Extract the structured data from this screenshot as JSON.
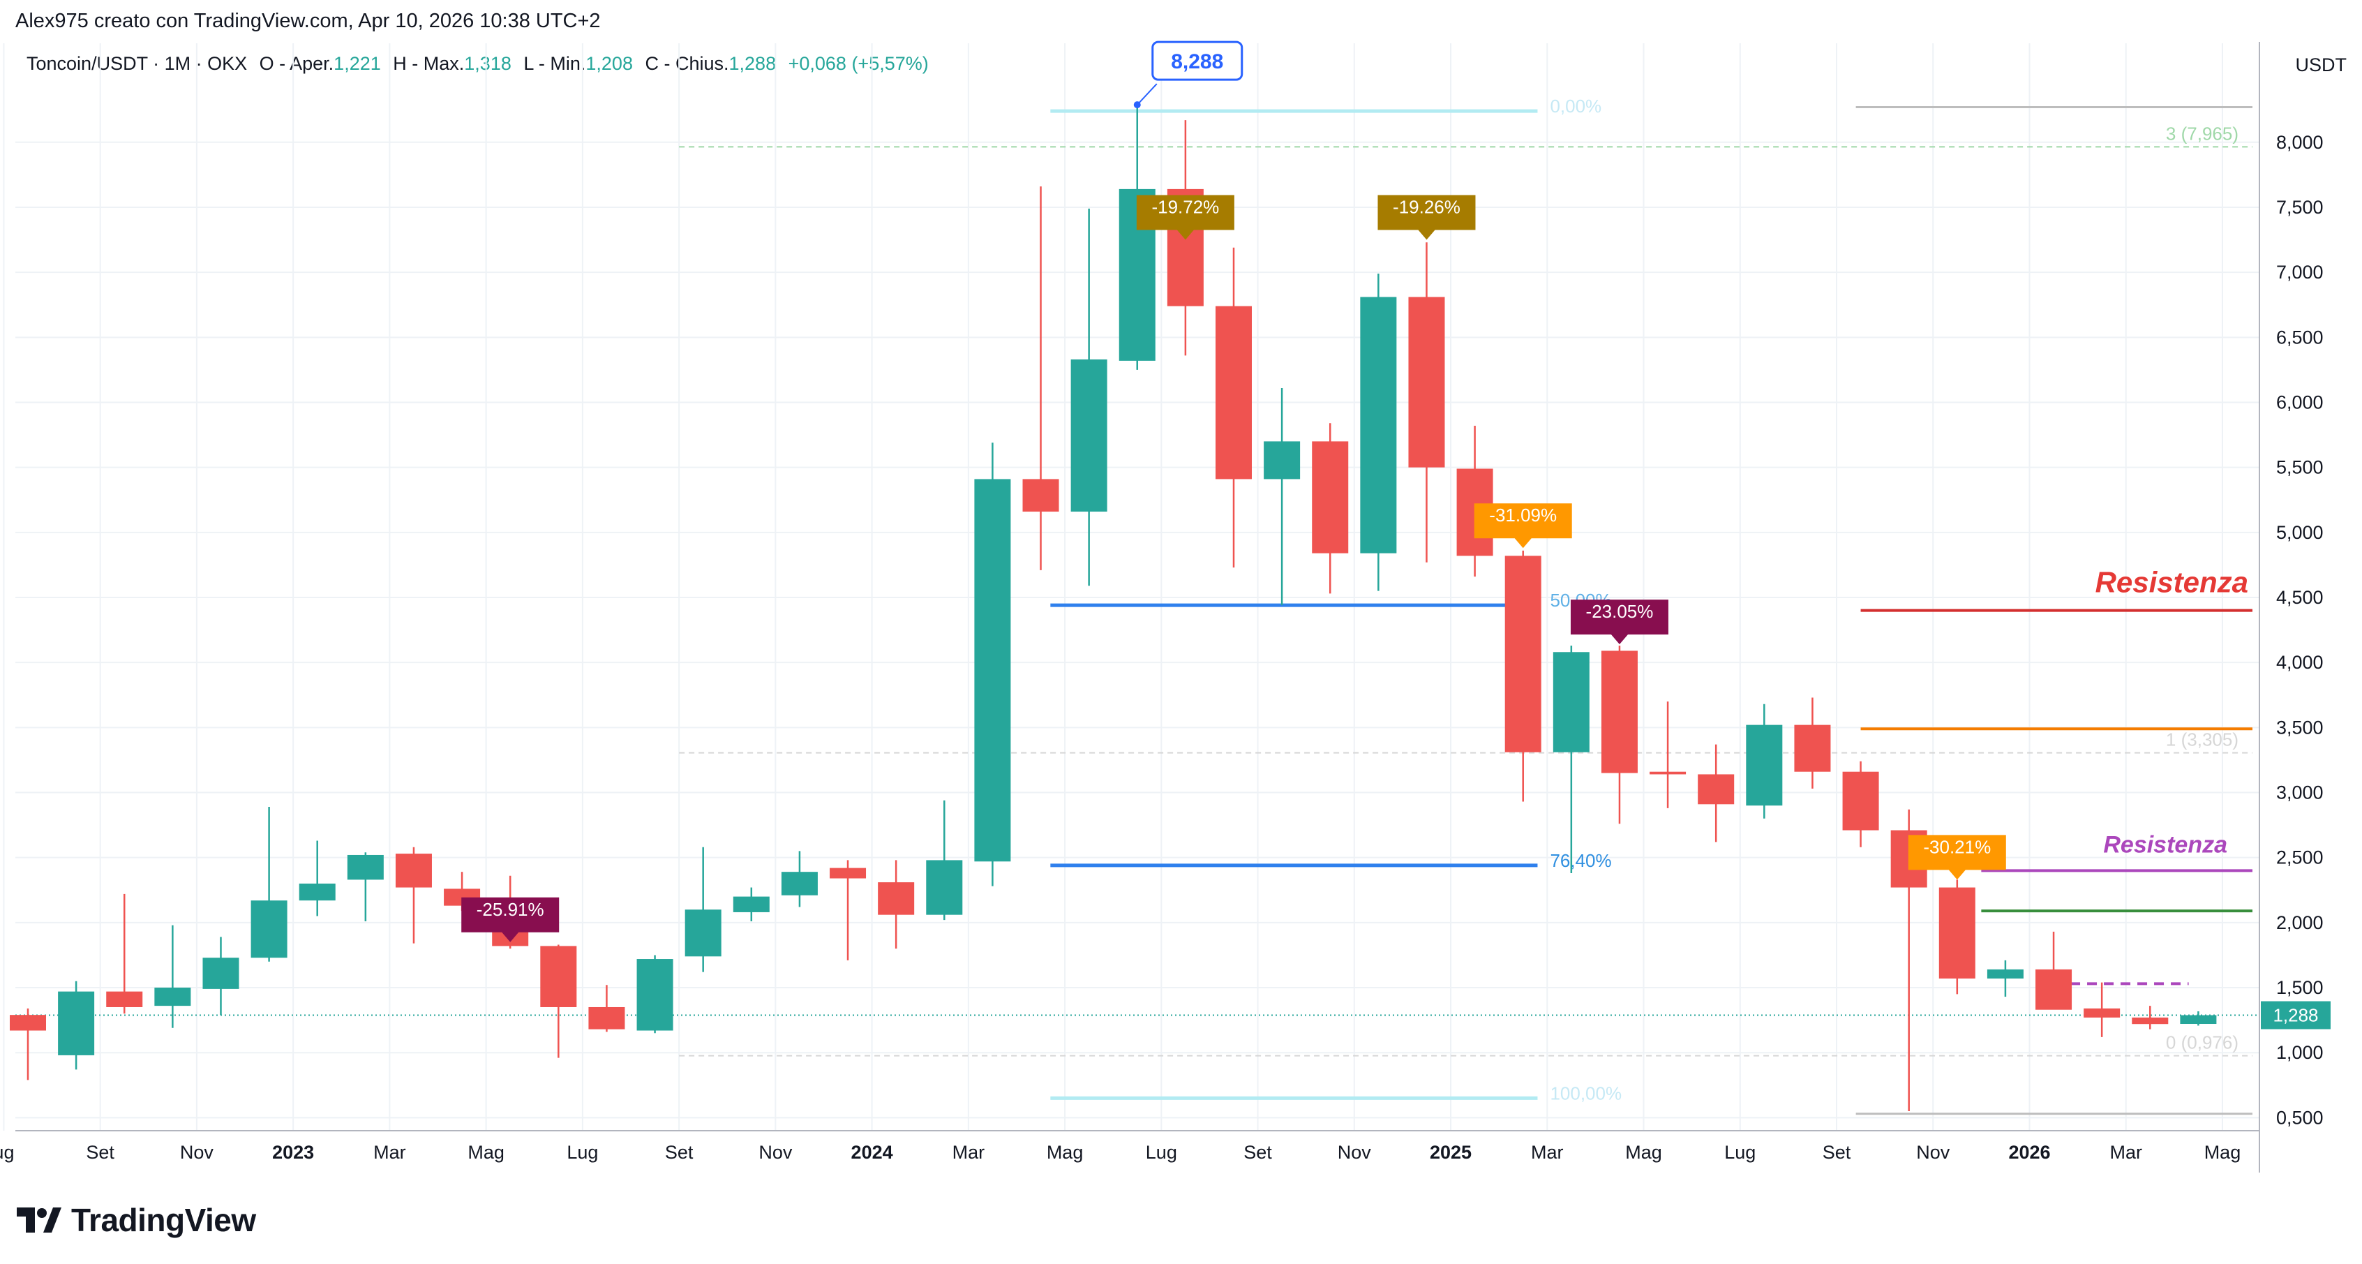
{
  "header": {
    "text": "Alex975 creato con TradingView.com, Apr 10, 2026 10:38 UTC+2"
  },
  "legend": {
    "symbol": "Toncoin/USDT · 1M · OKX",
    "open_label": "O - Aper.",
    "open": "1,221",
    "high_label": "H - Max.",
    "high": "1,318",
    "low_label": "L - Min.",
    "low": "1,208",
    "close_label": "C - Chius.",
    "close": "1,288",
    "change": "+0,068 (+5,57%)"
  },
  "currency": "USDT",
  "brand": {
    "name": "TradingView",
    "icon": "tradingview-logo-icon"
  },
  "colors": {
    "up": "#26a69a",
    "down": "#ef5350",
    "grid": "#eef2f6",
    "price_line": "#26a69a"
  },
  "chart_data": {
    "type": "candlestick",
    "title": "Toncoin/USDT · 1M · OKX",
    "ylim": [
      0.4,
      8.6
    ],
    "y_ticks": [
      {
        "v": 0.5,
        "label": "0,500"
      },
      {
        "v": 1.0,
        "label": "1,000"
      },
      {
        "v": 1.5,
        "label": "1,500"
      },
      {
        "v": 2.0,
        "label": "2,000"
      },
      {
        "v": 2.5,
        "label": "2,500"
      },
      {
        "v": 3.0,
        "label": "3,000"
      },
      {
        "v": 3.5,
        "label": "3,500"
      },
      {
        "v": 4.0,
        "label": "4,000"
      },
      {
        "v": 4.5,
        "label": "4,500"
      },
      {
        "v": 5.0,
        "label": "5,000"
      },
      {
        "v": 5.5,
        "label": "5,500"
      },
      {
        "v": 6.0,
        "label": "6,000"
      },
      {
        "v": 6.5,
        "label": "6,500"
      },
      {
        "v": 7.0,
        "label": "7,000"
      },
      {
        "v": 7.5,
        "label": "7,500"
      },
      {
        "v": 8.0,
        "label": "8,000"
      }
    ],
    "x_ticks": [
      {
        "i": -0.5,
        "label": "ug",
        "bold": false
      },
      {
        "i": 1.5,
        "label": "Set",
        "bold": false
      },
      {
        "i": 3.5,
        "label": "Nov",
        "bold": false
      },
      {
        "i": 5.5,
        "label": "2023",
        "bold": true
      },
      {
        "i": 7.5,
        "label": "Mar",
        "bold": false
      },
      {
        "i": 9.5,
        "label": "Mag",
        "bold": false
      },
      {
        "i": 11.5,
        "label": "Lug",
        "bold": false
      },
      {
        "i": 13.5,
        "label": "Set",
        "bold": false
      },
      {
        "i": 15.5,
        "label": "Nov",
        "bold": false
      },
      {
        "i": 17.5,
        "label": "2024",
        "bold": true
      },
      {
        "i": 19.5,
        "label": "Mar",
        "bold": false
      },
      {
        "i": 21.5,
        "label": "Mag",
        "bold": false
      },
      {
        "i": 23.5,
        "label": "Lug",
        "bold": false
      },
      {
        "i": 25.5,
        "label": "Set",
        "bold": false
      },
      {
        "i": 27.5,
        "label": "Nov",
        "bold": false
      },
      {
        "i": 29.5,
        "label": "2025",
        "bold": true
      },
      {
        "i": 31.5,
        "label": "Mar",
        "bold": false
      },
      {
        "i": 33.5,
        "label": "Mag",
        "bold": false
      },
      {
        "i": 35.5,
        "label": "Lug",
        "bold": false
      },
      {
        "i": 37.5,
        "label": "Set",
        "bold": false
      },
      {
        "i": 39.5,
        "label": "Nov",
        "bold": false
      },
      {
        "i": 41.5,
        "label": "2026",
        "bold": true
      },
      {
        "i": 43.5,
        "label": "Mar",
        "bold": false
      },
      {
        "i": 45.5,
        "label": "Mag",
        "bold": false
      }
    ],
    "candles": [
      {
        "month": "2022-07",
        "o": 1.29,
        "h": 1.34,
        "l": 0.79,
        "c": 1.17
      },
      {
        "month": "2022-08",
        "o": 0.98,
        "h": 1.55,
        "l": 0.87,
        "c": 1.47
      },
      {
        "month": "2022-09",
        "o": 1.47,
        "h": 2.22,
        "l": 1.3,
        "c": 1.35
      },
      {
        "month": "2022-10",
        "o": 1.36,
        "h": 1.98,
        "l": 1.19,
        "c": 1.5
      },
      {
        "month": "2022-11",
        "o": 1.49,
        "h": 1.89,
        "l": 1.29,
        "c": 1.73
      },
      {
        "month": "2022-12",
        "o": 1.73,
        "h": 2.89,
        "l": 1.7,
        "c": 2.17
      },
      {
        "month": "2023-01",
        "o": 2.17,
        "h": 2.63,
        "l": 2.05,
        "c": 2.3
      },
      {
        "month": "2023-02",
        "o": 2.33,
        "h": 2.54,
        "l": 2.01,
        "c": 2.52
      },
      {
        "month": "2023-03",
        "o": 2.53,
        "h": 2.58,
        "l": 1.84,
        "c": 2.27
      },
      {
        "month": "2023-04",
        "o": 2.26,
        "h": 2.39,
        "l": 2.09,
        "c": 2.13
      },
      {
        "month": "2023-05",
        "o": 2.11,
        "h": 2.36,
        "l": 1.8,
        "c": 1.82
      },
      {
        "month": "2023-06",
        "o": 1.82,
        "h": 1.83,
        "l": 0.96,
        "c": 1.35
      },
      {
        "month": "2023-07",
        "o": 1.35,
        "h": 1.52,
        "l": 1.16,
        "c": 1.18
      },
      {
        "month": "2023-08",
        "o": 1.17,
        "h": 1.75,
        "l": 1.15,
        "c": 1.72
      },
      {
        "month": "2023-09",
        "o": 1.74,
        "h": 2.58,
        "l": 1.62,
        "c": 2.1
      },
      {
        "month": "2023-10",
        "o": 2.08,
        "h": 2.27,
        "l": 2.01,
        "c": 2.2
      },
      {
        "month": "2023-11",
        "o": 2.21,
        "h": 2.55,
        "l": 2.12,
        "c": 2.39
      },
      {
        "month": "2023-12",
        "o": 2.42,
        "h": 2.48,
        "l": 1.71,
        "c": 2.34
      },
      {
        "month": "2024-01",
        "o": 2.31,
        "h": 2.48,
        "l": 1.8,
        "c": 2.06
      },
      {
        "month": "2024-02",
        "o": 2.06,
        "h": 2.94,
        "l": 2.02,
        "c": 2.48
      },
      {
        "month": "2024-03",
        "o": 2.47,
        "h": 5.69,
        "l": 2.28,
        "c": 5.41
      },
      {
        "month": "2024-04",
        "o": 5.41,
        "h": 7.66,
        "l": 4.71,
        "c": 5.16
      },
      {
        "month": "2024-05",
        "o": 5.16,
        "h": 7.49,
        "l": 4.59,
        "c": 6.33
      },
      {
        "month": "2024-06",
        "o": 6.32,
        "h": 8.288,
        "l": 6.25,
        "c": 7.64
      },
      {
        "month": "2024-07",
        "o": 7.64,
        "h": 8.17,
        "l": 6.36,
        "c": 6.74
      },
      {
        "month": "2024-08",
        "o": 6.74,
        "h": 7.19,
        "l": 4.73,
        "c": 5.41
      },
      {
        "month": "2024-09",
        "o": 5.41,
        "h": 6.11,
        "l": 4.44,
        "c": 5.7
      },
      {
        "month": "2024-10",
        "o": 5.7,
        "h": 5.84,
        "l": 4.53,
        "c": 4.84
      },
      {
        "month": "2024-11",
        "o": 4.84,
        "h": 6.99,
        "l": 4.55,
        "c": 6.81
      },
      {
        "month": "2024-12",
        "o": 6.81,
        "h": 7.23,
        "l": 4.77,
        "c": 5.5
      },
      {
        "month": "2025-01",
        "o": 5.49,
        "h": 5.82,
        "l": 4.66,
        "c": 4.82
      },
      {
        "month": "2025-02",
        "o": 4.82,
        "h": 4.86,
        "l": 2.93,
        "c": 3.31
      },
      {
        "month": "2025-03",
        "o": 3.31,
        "h": 4.13,
        "l": 2.38,
        "c": 4.08
      },
      {
        "month": "2025-04",
        "o": 4.09,
        "h": 4.13,
        "l": 2.76,
        "c": 3.15
      },
      {
        "month": "2025-05",
        "o": 3.16,
        "h": 3.7,
        "l": 2.88,
        "c": 3.14
      },
      {
        "month": "2025-06",
        "o": 3.14,
        "h": 3.37,
        "l": 2.62,
        "c": 2.91
      },
      {
        "month": "2025-07",
        "o": 2.9,
        "h": 3.68,
        "l": 2.8,
        "c": 3.52
      },
      {
        "month": "2025-08",
        "o": 3.52,
        "h": 3.73,
        "l": 3.03,
        "c": 3.16
      },
      {
        "month": "2025-09",
        "o": 3.16,
        "h": 3.24,
        "l": 2.58,
        "c": 2.71
      },
      {
        "month": "2025-10",
        "o": 2.71,
        "h": 2.87,
        "l": 0.55,
        "c": 2.27
      },
      {
        "month": "2025-11",
        "o": 2.27,
        "h": 2.33,
        "l": 1.45,
        "c": 1.57
      },
      {
        "month": "2025-12",
        "o": 1.57,
        "h": 1.71,
        "l": 1.43,
        "c": 1.64
      },
      {
        "month": "2026-01",
        "o": 1.64,
        "h": 1.93,
        "l": 1.34,
        "c": 1.33
      },
      {
        "month": "2026-02",
        "o": 1.34,
        "h": 1.54,
        "l": 1.12,
        "c": 1.27
      },
      {
        "month": "2026-03",
        "o": 1.27,
        "h": 1.36,
        "l": 1.18,
        "c": 1.22
      },
      {
        "month": "2026-04",
        "o": 1.221,
        "h": 1.318,
        "l": 1.208,
        "c": 1.288
      }
    ],
    "current_price": {
      "value": 1.288,
      "label": "1,288"
    },
    "high_marker": {
      "index": 23,
      "value": 8.288,
      "label": "8,288"
    },
    "fibonacci_retracement": {
      "color": "#b2ebf2",
      "label_color": "#5fb0e6",
      "levels": [
        {
          "value": 8.24,
          "label": "0,00%",
          "color": "#b2ebf2",
          "text_color": "#c6e9f5"
        },
        {
          "value": 4.44,
          "label": "50,00%",
          "color": "#2f80ed",
          "text_color": "#5fb0e6"
        },
        {
          "value": 2.44,
          "label": "76,40%",
          "color": "#2f80ed",
          "text_color": "#2f8fe0"
        },
        {
          "value": 0.65,
          "label": "100,00%",
          "color": "#b2ebf2",
          "text_color": "#c6e9f5"
        }
      ]
    },
    "fibonacci_extension": {
      "levels": [
        {
          "value": 7.965,
          "label": "3 (7,965)",
          "color": "#9fd8a8"
        },
        {
          "value": 3.305,
          "label": "1 (3,305)",
          "color": "#d6d6d6"
        },
        {
          "value": 0.976,
          "label": "0 (0,976)",
          "color": "#d6d6d6"
        }
      ]
    },
    "pct_labels": [
      {
        "index": 24,
        "text": "-19.72%",
        "bg": "#a67c00",
        "anchor": 7.25
      },
      {
        "index": 29,
        "text": "-19.26%",
        "bg": "#a67c00",
        "anchor": 7.25
      },
      {
        "index": 31,
        "text": "-31.09%",
        "bg": "#ff9800",
        "anchor": 4.88
      },
      {
        "index": 33,
        "text": "-23.05%",
        "bg": "#880e4f",
        "anchor": 4.14
      },
      {
        "index": 10,
        "text": "-25.91%",
        "bg": "#880e4f",
        "anchor": 1.85
      },
      {
        "index": 40,
        "text": "-30.21%",
        "bg": "#ff9800",
        "anchor": 2.33
      }
    ],
    "annotations": [
      {
        "text": "Resistenza",
        "value": 4.4,
        "color": "#e53935",
        "size": "large"
      },
      {
        "text": "Resistenza",
        "value": 2.4,
        "color": "#ab47bc",
        "size": "medium"
      }
    ],
    "horizontal_lines": [
      {
        "value": 4.4,
        "color": "#d32f2f",
        "style": "solid"
      },
      {
        "value": 3.49,
        "color": "#f57c00",
        "style": "solid"
      },
      {
        "value": 2.4,
        "color": "#ab47bc",
        "style": "solid"
      },
      {
        "value": 2.09,
        "color": "#388e3c",
        "style": "solid"
      },
      {
        "value": 1.53,
        "color": "#ab47bc",
        "style": "dashed"
      },
      {
        "value": 8.27,
        "color": "#bdbdbd",
        "style": "solid"
      },
      {
        "value": 0.53,
        "color": "#bdbdbd",
        "style": "solid"
      }
    ]
  }
}
